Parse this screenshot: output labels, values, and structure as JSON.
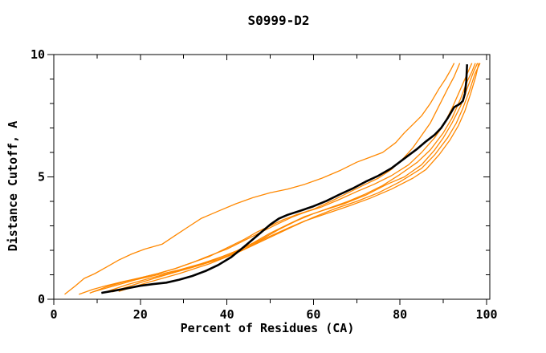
{
  "chart_data": {
    "type": "line",
    "title": "S0999-D2",
    "xlabel": "Percent of Residues (CA)",
    "ylabel": "Distance Cutoff, A",
    "xlim": [
      0,
      100
    ],
    "ylim": [
      0,
      10
    ],
    "x_ticks_major": [
      0,
      20,
      40,
      60,
      80,
      100
    ],
    "x_ticks_minor": [
      10,
      30,
      50,
      70,
      90
    ],
    "y_ticks_major": [
      0,
      5,
      10
    ],
    "y_ticks_minor": [
      1,
      2,
      3,
      4,
      6,
      7,
      8,
      9
    ],
    "grid": false,
    "legend": "none",
    "axis_color": "#000000",
    "background": "#ffffff",
    "series": [
      {
        "name": "orange-1-high",
        "color": "#ff8800",
        "width": 1.3,
        "points": [
          [
            2.5,
            0.2
          ],
          [
            5,
            0.55
          ],
          [
            7,
            0.85
          ],
          [
            9.5,
            1.05
          ],
          [
            12,
            1.3
          ],
          [
            15,
            1.6
          ],
          [
            18,
            1.85
          ],
          [
            21,
            2.05
          ],
          [
            25,
            2.25
          ],
          [
            28,
            2.6
          ],
          [
            31,
            2.95
          ],
          [
            34,
            3.3
          ],
          [
            38,
            3.6
          ],
          [
            42,
            3.9
          ],
          [
            46,
            4.15
          ],
          [
            50,
            4.35
          ],
          [
            54,
            4.5
          ],
          [
            58,
            4.7
          ],
          [
            62,
            4.95
          ],
          [
            66,
            5.25
          ],
          [
            70,
            5.6
          ],
          [
            73,
            5.8
          ],
          [
            76,
            6.0
          ],
          [
            79,
            6.4
          ],
          [
            81,
            6.8
          ],
          [
            83,
            7.15
          ],
          [
            85,
            7.5
          ],
          [
            87,
            8.0
          ],
          [
            89,
            8.6
          ],
          [
            90.5,
            9.0
          ],
          [
            91.8,
            9.4
          ],
          [
            92.5,
            9.65
          ]
        ]
      },
      {
        "name": "orange-2",
        "color": "#ff8800",
        "width": 1.3,
        "points": [
          [
            5.8,
            0.2
          ],
          [
            9,
            0.4
          ],
          [
            12,
            0.55
          ],
          [
            16,
            0.72
          ],
          [
            20,
            0.88
          ],
          [
            24,
            1.05
          ],
          [
            28,
            1.25
          ],
          [
            32,
            1.5
          ],
          [
            36,
            1.75
          ],
          [
            40,
            2.1
          ],
          [
            44,
            2.45
          ],
          [
            47,
            2.75
          ],
          [
            50,
            3.0
          ],
          [
            53,
            3.25
          ],
          [
            56,
            3.45
          ],
          [
            60,
            3.68
          ],
          [
            64,
            4.0
          ],
          [
            68,
            4.35
          ],
          [
            72,
            4.7
          ],
          [
            75,
            4.95
          ],
          [
            78,
            5.3
          ],
          [
            81,
            5.8
          ],
          [
            83,
            6.2
          ],
          [
            85,
            6.7
          ],
          [
            87,
            7.2
          ],
          [
            89,
            7.9
          ],
          [
            91,
            8.6
          ],
          [
            92.5,
            9.1
          ],
          [
            93.8,
            9.65
          ]
        ]
      },
      {
        "name": "orange-3",
        "color": "#ff8800",
        "width": 1.3,
        "points": [
          [
            8.3,
            0.25
          ],
          [
            12,
            0.5
          ],
          [
            16,
            0.7
          ],
          [
            20,
            0.88
          ],
          [
            24,
            1.05
          ],
          [
            28,
            1.25
          ],
          [
            32,
            1.5
          ],
          [
            36,
            1.78
          ],
          [
            40,
            2.05
          ],
          [
            44,
            2.4
          ],
          [
            48,
            2.75
          ],
          [
            52,
            3.1
          ],
          [
            55,
            3.35
          ],
          [
            58,
            3.55
          ],
          [
            62,
            3.78
          ],
          [
            66,
            4.08
          ],
          [
            70,
            4.4
          ],
          [
            74,
            4.7
          ],
          [
            78,
            5.05
          ],
          [
            82,
            5.5
          ],
          [
            85,
            6.0
          ],
          [
            88,
            6.6
          ],
          [
            90,
            7.1
          ],
          [
            92,
            7.8
          ],
          [
            94,
            8.6
          ],
          [
            95.5,
            9.2
          ],
          [
            96.6,
            9.65
          ]
        ]
      },
      {
        "name": "orange-4",
        "color": "#ff8800",
        "width": 1.3,
        "points": [
          [
            9,
            0.3
          ],
          [
            14,
            0.55
          ],
          [
            19,
            0.8
          ],
          [
            24,
            1.0
          ],
          [
            29,
            1.2
          ],
          [
            34,
            1.45
          ],
          [
            39,
            1.75
          ],
          [
            44,
            2.1
          ],
          [
            48,
            2.45
          ],
          [
            52,
            2.85
          ],
          [
            56,
            3.2
          ],
          [
            60,
            3.5
          ],
          [
            64,
            3.75
          ],
          [
            68,
            4.0
          ],
          [
            72,
            4.3
          ],
          [
            76,
            4.65
          ],
          [
            80,
            5.1
          ],
          [
            84,
            5.6
          ],
          [
            87,
            6.1
          ],
          [
            90,
            6.8
          ],
          [
            92,
            7.4
          ],
          [
            94,
            8.2
          ],
          [
            95.5,
            8.9
          ],
          [
            96.6,
            9.3
          ],
          [
            97.4,
            9.65
          ]
        ]
      },
      {
        "name": "orange-5",
        "color": "#ff8800",
        "width": 1.3,
        "points": [
          [
            12,
            0.3
          ],
          [
            17,
            0.6
          ],
          [
            22,
            0.85
          ],
          [
            27,
            1.08
          ],
          [
            32,
            1.32
          ],
          [
            37,
            1.6
          ],
          [
            42,
            1.95
          ],
          [
            46,
            2.3
          ],
          [
            50,
            2.7
          ],
          [
            54,
            3.05
          ],
          [
            58,
            3.38
          ],
          [
            62,
            3.62
          ],
          [
            67,
            3.9
          ],
          [
            72,
            4.25
          ],
          [
            77,
            4.7
          ],
          [
            81,
            5.0
          ],
          [
            85,
            5.5
          ],
          [
            88,
            6.1
          ],
          [
            90,
            6.6
          ],
          [
            92,
            7.2
          ],
          [
            94,
            7.9
          ],
          [
            95.5,
            8.6
          ],
          [
            97,
            9.3
          ],
          [
            97.9,
            9.65
          ]
        ]
      },
      {
        "name": "orange-6",
        "color": "#ff8800",
        "width": 1.3,
        "points": [
          [
            13.5,
            0.3
          ],
          [
            20,
            0.68
          ],
          [
            26,
            1.0
          ],
          [
            32,
            1.3
          ],
          [
            38,
            1.62
          ],
          [
            44,
            2.05
          ],
          [
            49,
            2.5
          ],
          [
            54,
            2.9
          ],
          [
            58,
            3.2
          ],
          [
            63,
            3.5
          ],
          [
            68,
            3.8
          ],
          [
            73,
            4.12
          ],
          [
            78,
            4.5
          ],
          [
            83,
            4.95
          ],
          [
            86,
            5.3
          ],
          [
            89,
            5.9
          ],
          [
            91.5,
            6.5
          ],
          [
            93.5,
            7.1
          ],
          [
            95,
            7.7
          ],
          [
            96.3,
            8.4
          ],
          [
            97.5,
            9.1
          ],
          [
            98.2,
            9.65
          ]
        ]
      },
      {
        "name": "orange-7",
        "color": "#ff8800",
        "width": 1.3,
        "points": [
          [
            15,
            0.32
          ],
          [
            22,
            0.7
          ],
          [
            29,
            1.05
          ],
          [
            36,
            1.45
          ],
          [
            43,
            1.95
          ],
          [
            49,
            2.45
          ],
          [
            55,
            2.95
          ],
          [
            60,
            3.35
          ],
          [
            65,
            3.7
          ],
          [
            70,
            4.0
          ],
          [
            75,
            4.35
          ],
          [
            80,
            4.8
          ],
          [
            85,
            5.35
          ],
          [
            88,
            5.9
          ],
          [
            91,
            6.6
          ],
          [
            93,
            7.2
          ],
          [
            94.5,
            7.8
          ],
          [
            96,
            8.5
          ],
          [
            97.3,
            9.2
          ],
          [
            98.5,
            9.65
          ]
        ]
      },
      {
        "name": "black-model",
        "color": "#000000",
        "width": 2.6,
        "points": [
          [
            11,
            0.26
          ],
          [
            14,
            0.35
          ],
          [
            17,
            0.45
          ],
          [
            20,
            0.55
          ],
          [
            23,
            0.62
          ],
          [
            26,
            0.68
          ],
          [
            29,
            0.8
          ],
          [
            32,
            0.95
          ],
          [
            35,
            1.15
          ],
          [
            38,
            1.4
          ],
          [
            41,
            1.72
          ],
          [
            44,
            2.15
          ],
          [
            47,
            2.6
          ],
          [
            50,
            3.05
          ],
          [
            52,
            3.3
          ],
          [
            54,
            3.45
          ],
          [
            57,
            3.62
          ],
          [
            60,
            3.8
          ],
          [
            63,
            4.02
          ],
          [
            66,
            4.28
          ],
          [
            69,
            4.52
          ],
          [
            72,
            4.8
          ],
          [
            75,
            5.05
          ],
          [
            78,
            5.35
          ],
          [
            81,
            5.75
          ],
          [
            84,
            6.15
          ],
          [
            86,
            6.45
          ],
          [
            88,
            6.72
          ],
          [
            89.5,
            7.0
          ],
          [
            91,
            7.4
          ],
          [
            92.5,
            7.85
          ],
          [
            93.8,
            7.98
          ],
          [
            94.5,
            8.1
          ],
          [
            95,
            8.4
          ],
          [
            95.3,
            8.9
          ],
          [
            95.5,
            9.6
          ]
        ]
      }
    ]
  }
}
